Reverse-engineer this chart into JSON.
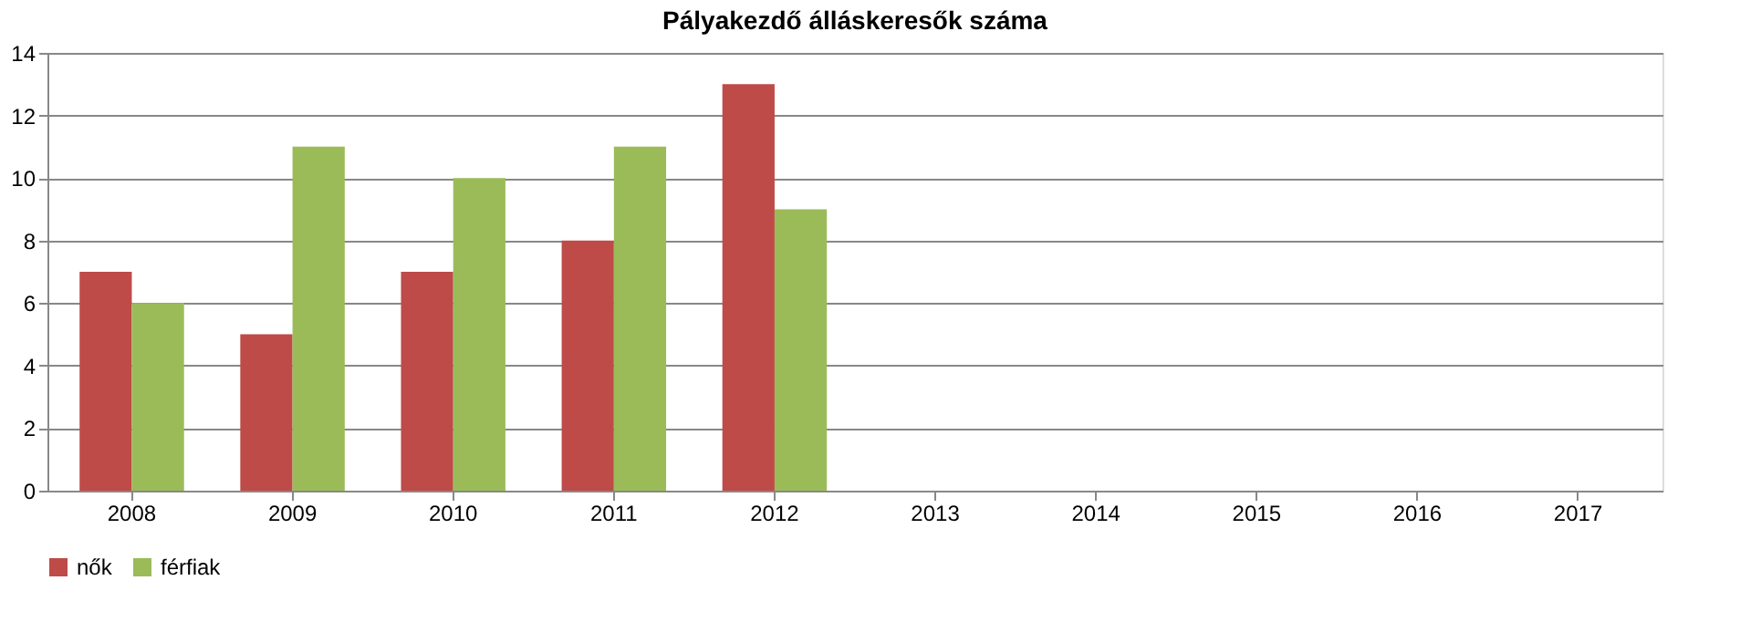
{
  "chart_data": {
    "type": "bar",
    "title": "Pályakezdő álláskeresők száma",
    "categories": [
      "2008",
      "2009",
      "2010",
      "2011",
      "2012",
      "2013",
      "2014",
      "2015",
      "2016",
      "2017"
    ],
    "series": [
      {
        "name": "nők",
        "color": "#be4b48",
        "values": [
          7,
          5,
          7,
          8,
          13,
          null,
          null,
          null,
          null,
          null
        ]
      },
      {
        "name": "férfiak",
        "color": "#9bbb59",
        "values": [
          6,
          11,
          10,
          11,
          9,
          null,
          null,
          null,
          null,
          null
        ]
      }
    ],
    "ylim": [
      0,
      14
    ],
    "yticks": [
      0,
      2,
      4,
      6,
      8,
      10,
      12,
      14
    ],
    "grid": "y",
    "legend": "bottom"
  }
}
